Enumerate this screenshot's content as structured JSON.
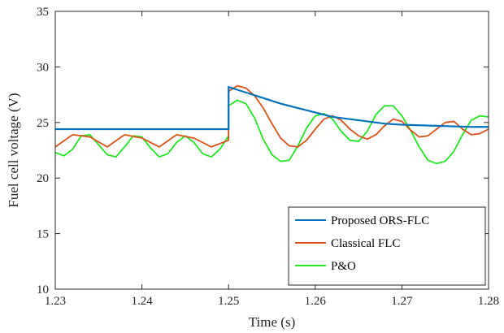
{
  "chart_data": {
    "type": "line",
    "xlabel": "Time (s)",
    "ylabel": "Fuel cell voltage (V)",
    "xlim": [
      1.23,
      1.28
    ],
    "ylim": [
      10,
      35
    ],
    "xticks": [
      1.23,
      1.24,
      1.25,
      1.26,
      1.27,
      1.28
    ],
    "xtick_labels": [
      "1.23",
      "1.24",
      "1.25",
      "1.26",
      "1.27",
      "1.28"
    ],
    "yticks": [
      10,
      15,
      20,
      25,
      30,
      35
    ],
    "ytick_labels": [
      "10",
      "15",
      "20",
      "25",
      "30",
      "35"
    ],
    "grid": false,
    "legend_position": "bottom-right",
    "series": [
      {
        "name": "Proposed ORS-FLC",
        "color": "#0072BD",
        "x": [
          1.23,
          1.25,
          1.25,
          1.252,
          1.254,
          1.256,
          1.258,
          1.26,
          1.262,
          1.264,
          1.266,
          1.268,
          1.27,
          1.272,
          1.274,
          1.276,
          1.278,
          1.28
        ],
        "y": [
          24.4,
          24.4,
          28.2,
          27.7,
          27.2,
          26.7,
          26.3,
          25.9,
          25.5,
          25.3,
          25.1,
          24.9,
          24.8,
          24.75,
          24.7,
          24.65,
          24.6,
          24.6
        ]
      },
      {
        "name": "Classical FLC",
        "color": "#D95319",
        "x": [
          1.23,
          1.232,
          1.234,
          1.236,
          1.238,
          1.24,
          1.242,
          1.244,
          1.246,
          1.248,
          1.25,
          1.25,
          1.251,
          1.252,
          1.253,
          1.254,
          1.255,
          1.256,
          1.257,
          1.258,
          1.259,
          1.26,
          1.261,
          1.262,
          1.263,
          1.264,
          1.265,
          1.266,
          1.267,
          1.268,
          1.269,
          1.27,
          1.271,
          1.272,
          1.273,
          1.274,
          1.275,
          1.276,
          1.277,
          1.278,
          1.279,
          1.28
        ],
        "y": [
          22.8,
          23.9,
          23.7,
          22.8,
          23.9,
          23.6,
          22.8,
          23.9,
          23.6,
          22.8,
          23.4,
          27.8,
          28.3,
          28.1,
          27.4,
          26.3,
          24.9,
          23.6,
          22.9,
          22.8,
          23.4,
          24.4,
          25.3,
          25.6,
          25.2,
          24.4,
          23.8,
          23.5,
          23.9,
          24.7,
          25.3,
          25.1,
          24.3,
          23.7,
          23.8,
          24.4,
          25.0,
          25.1,
          24.4,
          23.9,
          24.0,
          24.4
        ]
      },
      {
        "name": "P&O",
        "color": "#22E622",
        "x": [
          1.23,
          1.231,
          1.232,
          1.233,
          1.234,
          1.235,
          1.236,
          1.237,
          1.238,
          1.239,
          1.24,
          1.241,
          1.242,
          1.243,
          1.244,
          1.245,
          1.246,
          1.247,
          1.248,
          1.249,
          1.25,
          1.25,
          1.251,
          1.252,
          1.253,
          1.254,
          1.255,
          1.256,
          1.257,
          1.258,
          1.259,
          1.26,
          1.261,
          1.262,
          1.263,
          1.264,
          1.265,
          1.266,
          1.267,
          1.268,
          1.269,
          1.27,
          1.271,
          1.272,
          1.273,
          1.274,
          1.275,
          1.276,
          1.277,
          1.278,
          1.279,
          1.28
        ],
        "y": [
          22.3,
          22.0,
          22.6,
          23.8,
          23.9,
          23.0,
          22.1,
          21.9,
          22.8,
          23.8,
          23.7,
          22.7,
          21.9,
          22.2,
          23.2,
          23.8,
          23.2,
          22.2,
          21.9,
          22.6,
          23.8,
          26.5,
          27.0,
          26.7,
          25.4,
          23.5,
          22.1,
          21.5,
          21.6,
          22.9,
          24.5,
          25.6,
          25.8,
          25.3,
          24.2,
          23.4,
          23.3,
          24.2,
          25.7,
          26.5,
          26.5,
          25.6,
          24.3,
          22.8,
          21.6,
          21.3,
          21.5,
          22.4,
          23.9,
          25.2,
          25.6,
          25.5
        ]
      }
    ]
  }
}
